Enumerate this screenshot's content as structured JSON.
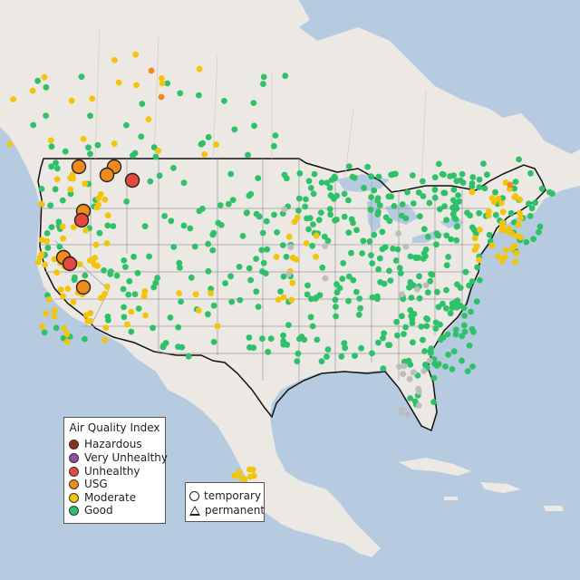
{
  "colors": {
    "ocean": "#b7cbe0",
    "land": "#ece8e3",
    "Hazardous": "#8a2f1e",
    "Very Unhealthy": "#8e4fa8",
    "Unhealthy": "#e4493b",
    "USG": "#f08a1c",
    "Moderate": "#f2c40a",
    "Good": "#2fc16a",
    "NoData": "#bdbdbd"
  },
  "legend": {
    "title": "Air Quality Index",
    "categories": [
      "Hazardous",
      "Very Unhealthy",
      "Unhealthy",
      "USG",
      "Moderate",
      "Good"
    ]
  },
  "site_legend": {
    "temporary": "temporary",
    "permanent": "permanent"
  }
}
